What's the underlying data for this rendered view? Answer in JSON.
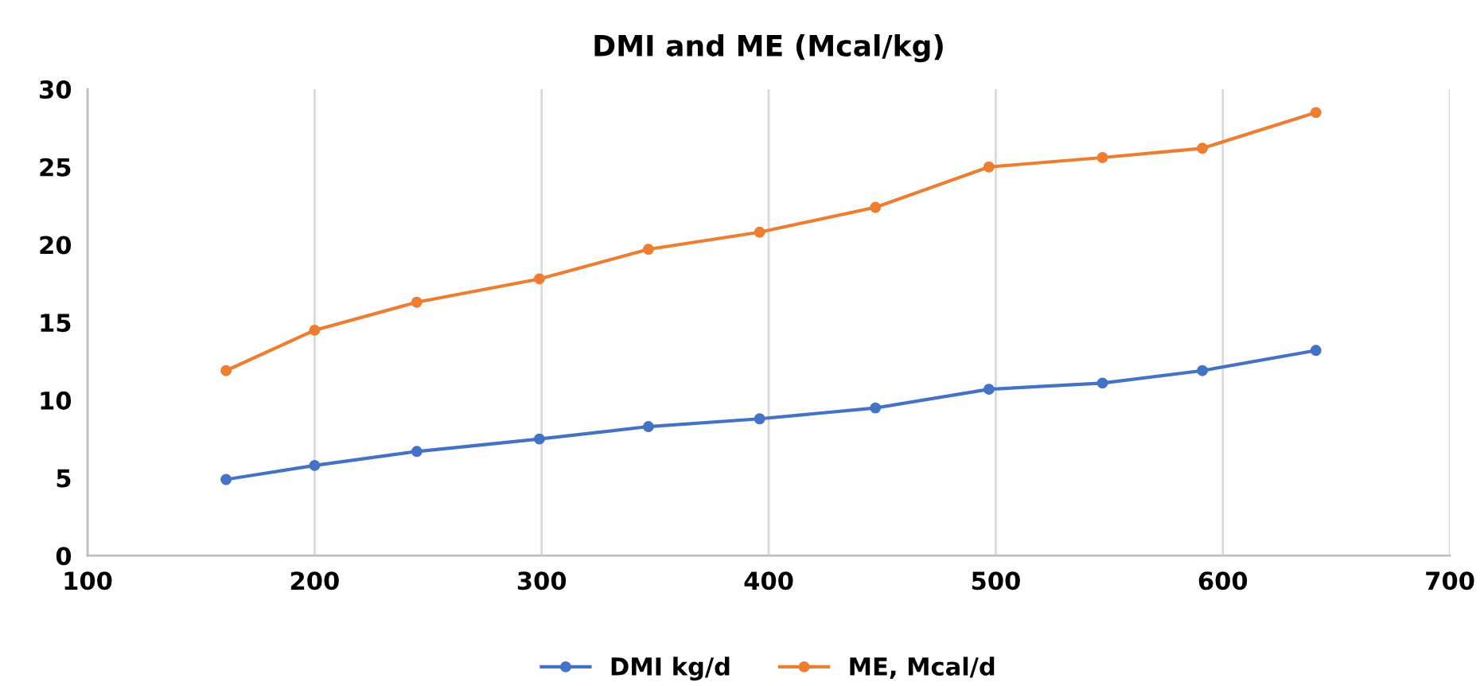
{
  "chart_data": {
    "type": "line",
    "title": "DMI and ME (Mcal/kg)",
    "x": [
      161,
      200,
      245,
      299,
      347,
      396,
      447,
      497,
      547,
      591,
      641
    ],
    "series": [
      {
        "name": "DMI kg/d",
        "color": "#4472c4",
        "values": [
          4.9,
          5.8,
          6.7,
          7.5,
          8.3,
          8.8,
          9.5,
          10.7,
          11.1,
          11.9,
          13.2
        ]
      },
      {
        "name": "ME, Mcal/d",
        "color": "#ed7d31",
        "values": [
          11.9,
          14.5,
          16.3,
          17.8,
          19.7,
          20.8,
          22.4,
          25.0,
          25.6,
          26.2,
          28.5
        ]
      }
    ],
    "xlim": [
      100,
      700
    ],
    "xticks": [
      100,
      200,
      300,
      400,
      500,
      600,
      700
    ],
    "ylim": [
      0,
      30
    ],
    "yticks": [
      0,
      5,
      10,
      15,
      20,
      25,
      30
    ],
    "grid": "x",
    "legend": "bottom",
    "marker": "circle",
    "line_style": "solid"
  }
}
